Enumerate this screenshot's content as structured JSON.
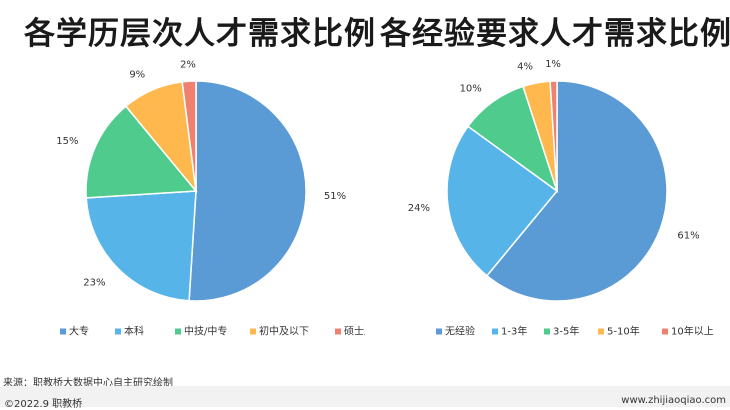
{
  "chart_data": [
    {
      "type": "pie",
      "title": "各学历层次人才需求比例",
      "categories": [
        "大专",
        "本科",
        "中技/中专",
        "初中及以下",
        "硕士及以上"
      ],
      "values": [
        51,
        23,
        15,
        9,
        2
      ],
      "value_labels": [
        "51%",
        "23%",
        "15%",
        "9%",
        "2%"
      ],
      "colors": [
        "#5b9bd5",
        "#56b4e9",
        "#4fcb8d",
        "#ffb84d",
        "#f08070"
      ],
      "legend_position": "bottom"
    },
    {
      "type": "pie",
      "title": "各经验要求人才需求比例",
      "categories": [
        "无经验",
        "1-3年",
        "3-5年",
        "5-10年",
        "10年以上"
      ],
      "values": [
        61,
        24,
        10,
        4,
        1
      ],
      "value_labels": [
        "61%",
        "24%",
        "10%",
        "4%",
        "1%"
      ],
      "colors": [
        "#5b9bd5",
        "#56b4e9",
        "#4fcb8d",
        "#ffb84d",
        "#f08070"
      ],
      "legend_position": "bottom"
    }
  ],
  "footer": {
    "source": "来源：职教桥大数据中心自主研究绘制",
    "copyright": "©2022.9 职教桥",
    "website": "www.zhijiaoqiao.com"
  }
}
